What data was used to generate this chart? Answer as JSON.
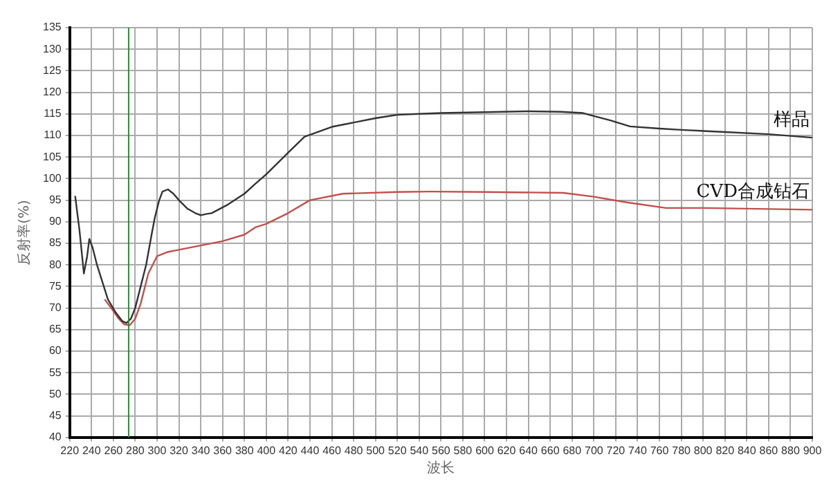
{
  "chart_data": {
    "type": "line",
    "xlabel": "波长",
    "ylabel": "反射率(%)",
    "xlim": [
      220,
      900
    ],
    "xticks": [
      220,
      240,
      260,
      280,
      300,
      320,
      340,
      360,
      380,
      400,
      420,
      440,
      460,
      480,
      500,
      520,
      540,
      560,
      580,
      600,
      620,
      640,
      660,
      680,
      700,
      720,
      740,
      760,
      780,
      800,
      820,
      840,
      860,
      880,
      900
    ],
    "ylim": [
      40,
      135
    ],
    "yticks": [
      40,
      45,
      50,
      55,
      60,
      65,
      70,
      75,
      80,
      85,
      90,
      95,
      100,
      105,
      110,
      115,
      120,
      125,
      130,
      135
    ],
    "grid": true,
    "legend": false,
    "marker": "none",
    "line_style": "solid",
    "ref_lines": [
      {
        "axis": "x",
        "value": 274,
        "color": "#2e8b3a"
      }
    ],
    "series": [
      {
        "name": "样品",
        "color": "#333333",
        "x": [
          225,
          229,
          233,
          236,
          238,
          241,
          245,
          250,
          255,
          262,
          268,
          272,
          276,
          280,
          285,
          290,
          295,
          298,
          302,
          305,
          310,
          315,
          320,
          328,
          335,
          340,
          345,
          350,
          365,
          380,
          390,
          400,
          410,
          420,
          435,
          460,
          500,
          520,
          540,
          560,
          600,
          640,
          670,
          690,
          700,
          715,
          733,
          760,
          780,
          820,
          860,
          900
        ],
        "values": [
          96,
          88,
          78,
          82,
          86,
          84,
          80,
          76,
          72,
          69,
          67,
          66.5,
          67.5,
          70,
          75,
          80,
          87,
          91,
          95,
          97,
          97.5,
          96.5,
          95,
          93,
          92,
          91.5,
          91.8,
          92,
          94,
          96.5,
          98.8,
          101,
          103.5,
          106,
          109.7,
          112,
          114,
          114.8,
          115,
          115.2,
          115.4,
          115.6,
          115.5,
          115.2,
          114.5,
          113.5,
          112.1,
          111.6,
          111.3,
          110.8,
          110.3,
          109.5
        ]
      },
      {
        "name": "CVD合成钻石",
        "color": "#c0504d",
        "x": [
          252,
          258,
          265,
          270,
          275,
          280,
          285,
          292,
          300,
          310,
          320,
          340,
          360,
          380,
          390,
          400,
          420,
          440,
          470,
          520,
          550,
          600,
          672,
          700,
          730,
          766,
          800,
          850,
          900
        ],
        "values": [
          72,
          70,
          67.5,
          66.2,
          66,
          67.5,
          71,
          78,
          82,
          83,
          83.5,
          84.5,
          85.5,
          87,
          88.7,
          89.5,
          92,
          95,
          96.5,
          96.9,
          97,
          96.9,
          96.7,
          95.8,
          94.5,
          93.2,
          93.2,
          93,
          92.8
        ]
      }
    ]
  }
}
